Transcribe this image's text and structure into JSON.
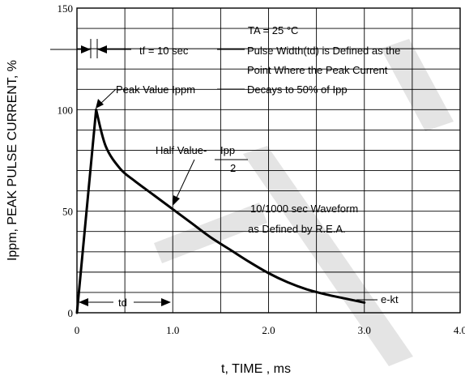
{
  "chart_data": {
    "type": "line",
    "xlabel": "t, TIME , ms",
    "ylabel": "Ippm, PEAK PULSE CURRENT, %",
    "xlim": [
      0,
      4.0
    ],
    "ylim": [
      0,
      150
    ],
    "x_ticks": [
      "0",
      "1.0",
      "2.0",
      "3.0",
      "4.0"
    ],
    "y_ticks": [
      "0",
      "50",
      "100",
      "150"
    ],
    "grid": true,
    "series": [
      {
        "x": [
          0,
          0.2,
          0.3,
          0.45,
          0.6,
          0.8,
          1.0,
          1.2,
          1.4,
          1.6,
          1.8,
          2.0,
          2.2,
          2.4,
          2.6,
          2.8,
          3.0
        ],
        "values": [
          0,
          100,
          82,
          71,
          65,
          58,
          51,
          44,
          37,
          31,
          25,
          19.5,
          15,
          11.5,
          9,
          7,
          5
        ]
      }
    ],
    "annotations": {
      "ta": "TA = 25 °C",
      "tf": "tf = 10   sec",
      "pulse_width_1": "Pulse Width(td) is Defined as the",
      "pulse_width_2": "Point Where the Peak Current",
      "pulse_width_3": "Decays to 50% of Ipp",
      "peak": "Peak Value  Ippm",
      "half_value": "Half Value-",
      "half_num": "Ipp",
      "half_den": "2",
      "waveform_1": "10/1000    sec Waveform",
      "waveform_2": "as Defined by R.E.A.",
      "td": "td",
      "ekt": "e-kt"
    }
  }
}
